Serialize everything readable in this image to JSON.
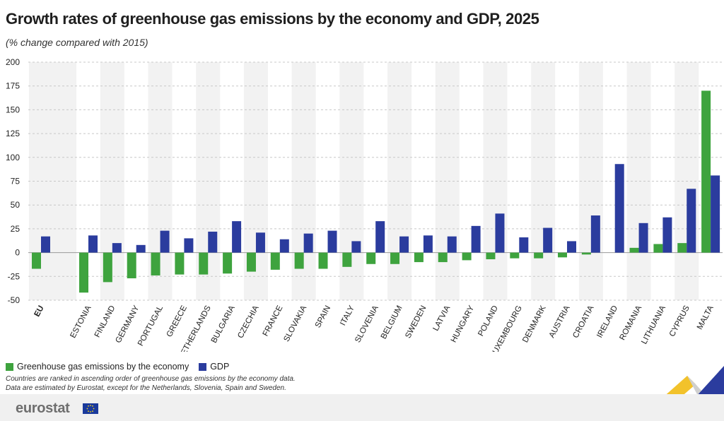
{
  "title": "Growth rates of greenhouse gas emissions by the economy and GDP, 2025",
  "subtitle": "(% change compared with 2015)",
  "legend": {
    "ghg_label": "Greenhouse gas emissions by the economy",
    "gdp_label": "GDP"
  },
  "notes": [
    "Countries are ranked in ascending order of greenhouse gas emissions by the economy data.",
    "Data are estimated by Eurostat, except for the Netherlands, Slovenia, Spain and Sweden."
  ],
  "footer": {
    "logo_text": "eurostat"
  },
  "colors": {
    "ghg": "#3ea33e",
    "gdp": "#2b3c9e",
    "band": "#f2f2f2",
    "grid": "#c8c8c8"
  },
  "chart_data": {
    "type": "bar",
    "categories": [
      "EU",
      "ESTONIA",
      "FINLAND",
      "GERMANY",
      "PORTUGAL",
      "GREECE",
      "NETHERLANDS",
      "BULGARIA",
      "CZECHIA",
      "FRANCE",
      "SLOVAKIA",
      "SPAIN",
      "ITALY",
      "SLOVENIA",
      "BELGIUM",
      "SWEDEN",
      "LATVIA",
      "HUNGARY",
      "POLAND",
      "LUXEMBOURG",
      "DENMARK",
      "AUSTRIA",
      "CROATIA",
      "IRELAND",
      "ROMANIA",
      "LITHUANIA",
      "CYPRUS",
      "MALTA"
    ],
    "series": [
      {
        "name": "Greenhouse gas emissions by the economy",
        "values": [
          -17,
          -42,
          -31,
          -27,
          -24,
          -23,
          -23,
          -22,
          -20,
          -18,
          -17,
          -17,
          -15,
          -12,
          -12,
          -10,
          -10,
          -8,
          -7,
          -6,
          -6,
          -5,
          -2,
          0,
          5,
          9,
          10,
          170
        ]
      },
      {
        "name": "GDP",
        "values": [
          17,
          18,
          10,
          8,
          23,
          15,
          22,
          33,
          21,
          14,
          20,
          23,
          12,
          33,
          17,
          18,
          17,
          28,
          41,
          16,
          26,
          12,
          39,
          93,
          31,
          37,
          67,
          81
        ]
      }
    ],
    "ylim": [
      -50,
      200
    ],
    "yticks": [
      -50,
      -25,
      0,
      25,
      50,
      75,
      100,
      125,
      150,
      175,
      200
    ],
    "grid": true,
    "alternating_bands": true,
    "legend_position": "bottom-left"
  }
}
